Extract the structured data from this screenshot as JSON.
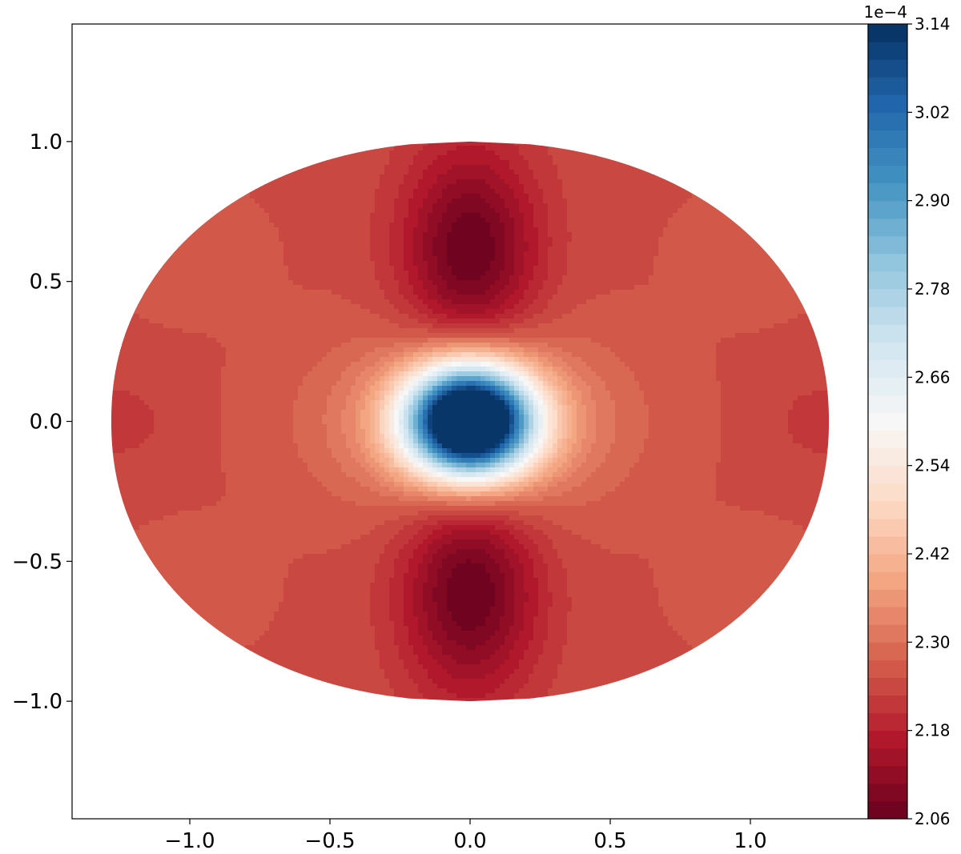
{
  "chart_data": {
    "type": "heatmap",
    "subtype": "filled-contour",
    "title": "",
    "xlabel": "",
    "ylabel": "",
    "xlim": [
      -1.42,
      1.42
    ],
    "ylim": [
      -1.42,
      1.42
    ],
    "xticks": [
      -1.0,
      -0.5,
      0.0,
      0.5,
      1.0
    ],
    "xtick_labels": [
      "−1.0",
      "−0.5",
      "0.0",
      "0.5",
      "1.0"
    ],
    "yticks": [
      1.0,
      0.5,
      0.0,
      -0.5,
      -1.0
    ],
    "ytick_labels": [
      "1.0",
      "0.5",
      "0.0",
      "−0.5",
      "−1.0"
    ],
    "grid": false,
    "domain_shape": "lens/ellipse spanning x in [-1.28, 1.28], y in [-1, 1]",
    "colormap": "RdBu",
    "colorbar": {
      "min": 2.06,
      "max": 3.14,
      "levels": 45,
      "offset_label": "1e−4",
      "tick_values": [
        2.06,
        2.18,
        2.3,
        2.42,
        2.54,
        2.66,
        2.78,
        2.9,
        3.02,
        3.14
      ],
      "tick_labels": [
        "2.06",
        "2.18",
        "2.30",
        "2.42",
        "2.54",
        "2.66",
        "2.78",
        "2.90",
        "3.02",
        "3.14"
      ]
    },
    "features": [
      {
        "x": 0.0,
        "y": 0.0,
        "value": 3.14
      },
      {
        "x": 0.0,
        "y": 0.6,
        "value": 2.06
      },
      {
        "x": 0.0,
        "y": -0.6,
        "value": 2.06
      },
      {
        "x": -1.2,
        "y": 0.0,
        "value": 2.22
      },
      {
        "x": 1.2,
        "y": 0.0,
        "value": 2.22
      },
      {
        "x": -1.0,
        "y": 0.6,
        "value": 2.27
      },
      {
        "x": 1.0,
        "y": 0.6,
        "value": 2.27
      },
      {
        "x": -1.0,
        "y": -0.6,
        "value": 2.27
      },
      {
        "x": 1.0,
        "y": -0.6,
        "value": 2.27
      }
    ]
  }
}
